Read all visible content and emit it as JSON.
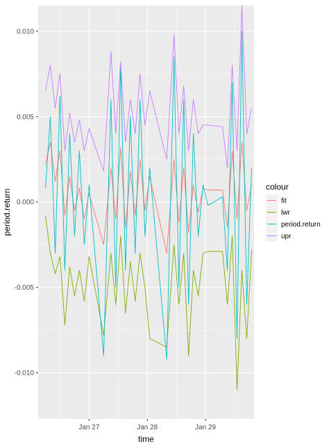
{
  "chart_data": {
    "type": "line",
    "xlabel": "time",
    "ylabel": "period.return",
    "x_ticks": [
      "Jan 27",
      "Jan 28",
      "Jan 29"
    ],
    "y_ticks": [
      {
        "value": 0.01,
        "label": "0.010"
      },
      {
        "value": 0.005,
        "label": "0.005"
      },
      {
        "value": 0.0,
        "label": "0.000"
      },
      {
        "value": -0.005,
        "label": "-0.005"
      },
      {
        "value": -0.01,
        "label": "-0.010"
      }
    ],
    "xlim": [
      "2021-01-26 03:00",
      "2021-01-29 20:00"
    ],
    "ylim": [
      -0.0127,
      0.0115
    ],
    "grid": true,
    "legend": {
      "title": "colour",
      "position": "right"
    },
    "series": [
      {
        "name": "fit",
        "color": "#F8766D",
        "points": [
          [
            "2021-01-26 06:00",
            0.0022
          ],
          [
            "2021-01-26 08:00",
            0.0035
          ],
          [
            "2021-01-26 10:00",
            0.0012
          ],
          [
            "2021-01-26 12:00",
            0.003
          ],
          [
            "2021-01-26 14:00",
            -0.0008
          ],
          [
            "2021-01-26 16:00",
            0.0015
          ],
          [
            "2021-01-26 18:00",
            -0.0005
          ],
          [
            "2021-01-26 20:00",
            0.0008
          ],
          [
            "2021-01-26 22:00",
            -0.001
          ],
          [
            "2021-01-27 00:00",
            0.0005
          ],
          [
            "2021-01-27 06:00",
            -0.0025
          ],
          [
            "2021-01-27 09:00",
            0.002
          ],
          [
            "2021-01-27 11:00",
            -0.001
          ],
          [
            "2021-01-27 13:00",
            0.0032
          ],
          [
            "2021-01-27 15:00",
            -0.0015
          ],
          [
            "2021-01-27 17:00",
            0.0018
          ],
          [
            "2021-01-27 19:00",
            -0.0008
          ],
          [
            "2021-01-27 21:00",
            0.0025
          ],
          [
            "2021-01-27 23:00",
            -0.0005
          ],
          [
            "2021-01-28 01:00",
            0.0015
          ],
          [
            "2021-01-28 08:00",
            -0.003
          ],
          [
            "2021-01-28 11:00",
            0.0025
          ],
          [
            "2021-01-28 13:00",
            -0.0012
          ],
          [
            "2021-01-28 15:00",
            0.002
          ],
          [
            "2021-01-28 17:00",
            -0.0018
          ],
          [
            "2021-01-28 19:00",
            0.001
          ],
          [
            "2021-01-28 21:00",
            -0.0006
          ],
          [
            "2021-01-28 23:00",
            0.0008
          ],
          [
            "2021-01-29 01:00",
            0.0007
          ],
          [
            "2021-01-29 07:00",
            0.0007
          ],
          [
            "2021-01-29 09:00",
            -0.0015
          ],
          [
            "2021-01-29 11:00",
            0.003
          ],
          [
            "2021-01-29 13:00",
            -0.001
          ],
          [
            "2021-01-29 15:00",
            0.0035
          ],
          [
            "2021-01-29 17:00",
            -0.0005
          ],
          [
            "2021-01-29 19:00",
            0.001
          ]
        ]
      },
      {
        "name": "lwr",
        "color": "#7CAE00",
        "points": [
          [
            "2021-01-26 06:00",
            -0.0008
          ],
          [
            "2021-01-26 08:00",
            -0.003
          ],
          [
            "2021-01-26 10:00",
            -0.0042
          ],
          [
            "2021-01-26 12:00",
            -0.0032
          ],
          [
            "2021-01-26 14:00",
            -0.0072
          ],
          [
            "2021-01-26 16:00",
            -0.0038
          ],
          [
            "2021-01-26 18:00",
            -0.0055
          ],
          [
            "2021-01-26 20:00",
            -0.004
          ],
          [
            "2021-01-26 22:00",
            -0.0058
          ],
          [
            "2021-01-27 00:00",
            -0.0032
          ],
          [
            "2021-01-27 06:00",
            -0.0078
          ],
          [
            "2021-01-27 09:00",
            -0.003
          ],
          [
            "2021-01-27 11:00",
            -0.006
          ],
          [
            "2021-01-27 13:00",
            -0.002
          ],
          [
            "2021-01-27 15:00",
            -0.0065
          ],
          [
            "2021-01-27 17:00",
            -0.0035
          ],
          [
            "2021-01-27 19:00",
            -0.0058
          ],
          [
            "2021-01-27 21:00",
            -0.003
          ],
          [
            "2021-01-27 23:00",
            -0.005
          ],
          [
            "2021-01-28 01:00",
            -0.008
          ],
          [
            "2021-01-28 08:00",
            -0.0085
          ],
          [
            "2021-01-28 11:00",
            -0.0025
          ],
          [
            "2021-01-28 13:00",
            -0.006
          ],
          [
            "2021-01-28 15:00",
            -0.003
          ],
          [
            "2021-01-28 17:00",
            -0.009
          ],
          [
            "2021-01-28 19:00",
            -0.004
          ],
          [
            "2021-01-28 21:00",
            -0.0055
          ],
          [
            "2021-01-28 23:00",
            -0.003
          ],
          [
            "2021-01-29 01:00",
            -0.0029
          ],
          [
            "2021-01-29 07:00",
            -0.0029
          ],
          [
            "2021-01-29 09:00",
            -0.006
          ],
          [
            "2021-01-29 11:00",
            -0.002
          ],
          [
            "2021-01-29 13:00",
            -0.011
          ],
          [
            "2021-01-29 15:00",
            -0.004
          ],
          [
            "2021-01-29 17:00",
            -0.008
          ],
          [
            "2021-01-29 19:00",
            -0.0028
          ]
        ]
      },
      {
        "name": "period.return",
        "color": "#00BFC4",
        "points": [
          [
            "2021-01-26 06:00",
            0.0008
          ],
          [
            "2021-01-26 08:00",
            0.005
          ],
          [
            "2021-01-26 10:00",
            -0.003
          ],
          [
            "2021-01-26 12:00",
            0.0062
          ],
          [
            "2021-01-26 14:00",
            -0.004
          ],
          [
            "2021-01-26 16:00",
            0.004
          ],
          [
            "2021-01-26 18:00",
            -0.002
          ],
          [
            "2021-01-26 20:00",
            0.003
          ],
          [
            "2021-01-26 22:00",
            -0.0025
          ],
          [
            "2021-01-27 00:00",
            0.001
          ],
          [
            "2021-01-27 06:00",
            -0.009
          ],
          [
            "2021-01-27 09:00",
            0.006
          ],
          [
            "2021-01-27 11:00",
            -0.005
          ],
          [
            "2021-01-27 13:00",
            0.008
          ],
          [
            "2021-01-27 15:00",
            -0.004
          ],
          [
            "2021-01-27 17:00",
            0.005
          ],
          [
            "2021-01-27 19:00",
            -0.003
          ],
          [
            "2021-01-27 21:00",
            0.006
          ],
          [
            "2021-01-27 23:00",
            -0.002
          ],
          [
            "2021-01-28 01:00",
            0.002
          ],
          [
            "2021-01-28 08:00",
            -0.0092
          ],
          [
            "2021-01-28 11:00",
            0.0085
          ],
          [
            "2021-01-28 13:00",
            -0.005
          ],
          [
            "2021-01-28 15:00",
            0.006
          ],
          [
            "2021-01-28 17:00",
            -0.006
          ],
          [
            "2021-01-28 19:00",
            0.004
          ],
          [
            "2021-01-28 21:00",
            -0.002
          ],
          [
            "2021-01-28 23:00",
            0.001
          ],
          [
            "2021-01-29 01:00",
            -0.0002
          ],
          [
            "2021-01-29 07:00",
            0.0003
          ],
          [
            "2021-01-29 09:00",
            -0.004
          ],
          [
            "2021-01-29 11:00",
            0.007
          ],
          [
            "2021-01-29 13:00",
            -0.008
          ],
          [
            "2021-01-29 15:00",
            0.01
          ],
          [
            "2021-01-29 17:00",
            -0.006
          ],
          [
            "2021-01-29 19:00",
            0.002
          ]
        ]
      },
      {
        "name": "upr",
        "color": "#C77CFF",
        "points": [
          [
            "2021-01-26 06:00",
            0.0065
          ],
          [
            "2021-01-26 08:00",
            0.008
          ],
          [
            "2021-01-26 10:00",
            0.0055
          ],
          [
            "2021-01-26 12:00",
            0.0075
          ],
          [
            "2021-01-26 14:00",
            0.003
          ],
          [
            "2021-01-26 16:00",
            0.0052
          ],
          [
            "2021-01-26 18:00",
            0.0035
          ],
          [
            "2021-01-26 20:00",
            0.0048
          ],
          [
            "2021-01-26 22:00",
            0.003
          ],
          [
            "2021-01-27 00:00",
            0.0043
          ],
          [
            "2021-01-27 06:00",
            0.0018
          ],
          [
            "2021-01-27 09:00",
            0.0088
          ],
          [
            "2021-01-27 11:00",
            0.004
          ],
          [
            "2021-01-27 13:00",
            0.0082
          ],
          [
            "2021-01-27 15:00",
            0.0035
          ],
          [
            "2021-01-27 17:00",
            0.006
          ],
          [
            "2021-01-27 19:00",
            0.004
          ],
          [
            "2021-01-27 21:00",
            0.0075
          ],
          [
            "2021-01-27 23:00",
            0.0045
          ],
          [
            "2021-01-28 01:00",
            0.0065
          ],
          [
            "2021-01-28 08:00",
            0.0025
          ],
          [
            "2021-01-28 11:00",
            0.0098
          ],
          [
            "2021-01-28 13:00",
            0.004
          ],
          [
            "2021-01-28 15:00",
            0.0068
          ],
          [
            "2021-01-28 17:00",
            0.003
          ],
          [
            "2021-01-28 19:00",
            0.006
          ],
          [
            "2021-01-28 21:00",
            0.004
          ],
          [
            "2021-01-28 23:00",
            0.0045
          ],
          [
            "2021-01-29 01:00",
            0.0045
          ],
          [
            "2021-01-29 07:00",
            0.0044
          ],
          [
            "2021-01-29 09:00",
            0.002
          ],
          [
            "2021-01-29 11:00",
            0.008
          ],
          [
            "2021-01-29 13:00",
            0.003
          ],
          [
            "2021-01-29 15:00",
            0.0115
          ],
          [
            "2021-01-29 17:00",
            0.004
          ],
          [
            "2021-01-29 19:00",
            0.0055
          ]
        ]
      }
    ]
  }
}
